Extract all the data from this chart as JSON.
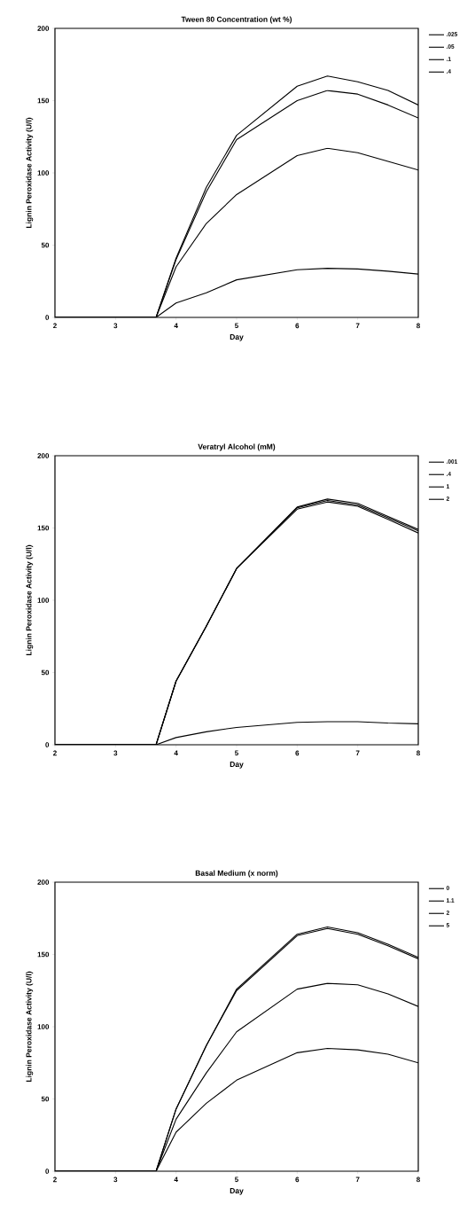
{
  "chart_data": [
    {
      "type": "line",
      "title": "Tween 80 Concentration (wt %)",
      "xlabel": "Day",
      "ylabel": "Lignin Peroxidase Activity (U/l)",
      "x": [
        2,
        3.67,
        4,
        4.5,
        5,
        6,
        6.5,
        7,
        7.5,
        8
      ],
      "xlim": [
        2,
        8
      ],
      "xticks": [
        2,
        3,
        4,
        5,
        6,
        7,
        8
      ],
      "ylim": [
        0,
        200
      ],
      "yticks": [
        0,
        50,
        100,
        150,
        200
      ],
      "legend": "right",
      "marker": "none",
      "line_style": "solid",
      "series": [
        {
          "name": ".025",
          "color": "#000000",
          "values": [
            0,
            0,
            41,
            90,
            126,
            160,
            167,
            163,
            157,
            147
          ]
        },
        {
          "name": ".05",
          "color": "#000000",
          "values": [
            0,
            0,
            40,
            87,
            123,
            150,
            157,
            154.5,
            147,
            138
          ]
        },
        {
          "name": ".1",
          "color": "#000000",
          "values": [
            0,
            0,
            35,
            65,
            85,
            112,
            117,
            114,
            108,
            102
          ]
        },
        {
          "name": ".4",
          "color": "#000000",
          "values": [
            0,
            0,
            10,
            17,
            26,
            33,
            34,
            33.5,
            32,
            30
          ]
        }
      ]
    },
    {
      "type": "line",
      "title": "Veratryl Alcohol (mM)",
      "xlabel": "Day",
      "ylabel": "Lignin Peroxidase Activity (U/l)",
      "x": [
        2,
        3.67,
        4,
        4.5,
        5,
        6,
        6.5,
        7,
        7.5,
        8
      ],
      "xlim": [
        2,
        8
      ],
      "xticks": [
        2,
        3,
        4,
        5,
        6,
        7,
        8
      ],
      "ylim": [
        0,
        200
      ],
      "yticks": [
        0,
        50,
        100,
        150,
        200
      ],
      "legend": "right",
      "marker": "none",
      "line_style": "solid",
      "series": [
        {
          "name": ".001",
          "color": "#000000",
          "values": [
            0,
            0,
            5,
            9,
            12,
            15.5,
            16,
            16,
            15,
            14.5
          ]
        },
        {
          "name": ".4",
          "color": "#000000",
          "values": [
            0,
            0,
            44,
            82,
            122,
            163,
            168,
            165,
            156,
            146.5
          ]
        },
        {
          "name": "1",
          "color": "#000000",
          "values": [
            0,
            0,
            44,
            82,
            122,
            164,
            169,
            166,
            157,
            148
          ]
        },
        {
          "name": "2",
          "color": "#000000",
          "values": [
            0,
            0,
            44,
            82,
            122,
            164.5,
            170,
            167,
            158,
            149
          ]
        }
      ]
    },
    {
      "type": "line",
      "title": "Basal Medium (x norm)",
      "xlabel": "Day",
      "ylabel": "Lignin Peroxidase Activity (U/l)",
      "x": [
        2,
        3.67,
        4,
        4.5,
        5,
        6,
        6.5,
        7,
        7.5,
        8
      ],
      "xlim": [
        2,
        8
      ],
      "xticks": [
        2,
        3,
        4,
        5,
        6,
        7,
        8
      ],
      "ylim": [
        0,
        200
      ],
      "yticks": [
        0,
        50,
        100,
        150,
        200
      ],
      "legend": "right",
      "marker": "none",
      "line_style": "solid",
      "series": [
        {
          "name": "0",
          "color": "#000000",
          "values": [
            0,
            0,
            27,
            47,
            63,
            82,
            85,
            84,
            81,
            75
          ]
        },
        {
          "name": "1.1",
          "color": "#000000",
          "values": [
            0,
            0,
            43,
            87,
            126,
            164,
            169,
            165,
            157,
            148
          ]
        },
        {
          "name": "2",
          "color": "#000000",
          "values": [
            0,
            0,
            43,
            87,
            125,
            163,
            168,
            164,
            156,
            147
          ]
        },
        {
          "name": "5",
          "color": "#000000",
          "values": [
            0,
            0,
            36,
            68,
            96.5,
            126,
            130,
            129,
            122.7,
            114
          ]
        }
      ]
    }
  ]
}
